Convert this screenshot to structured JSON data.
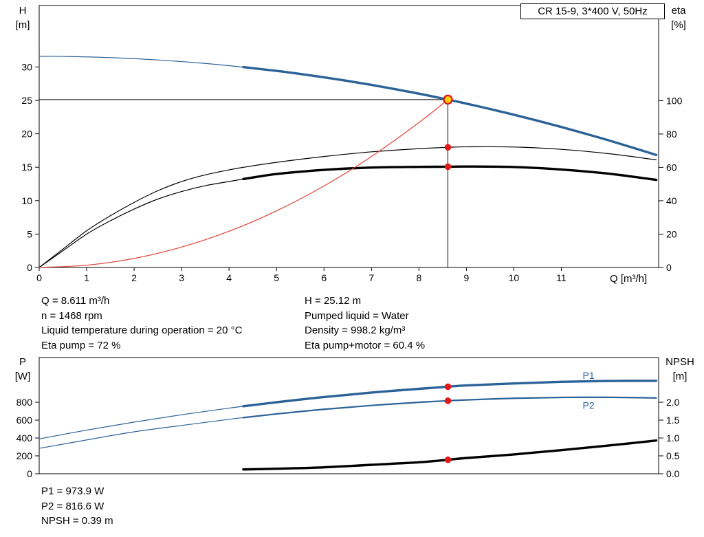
{
  "colors": {
    "blue": "#2b6298",
    "black": "#000000",
    "system_red": "#e04438",
    "dot_red": "#e01818",
    "duty_fill": "#ffd300",
    "duty_ring": "#e01818"
  },
  "info_top": {
    "col1": [
      "Q = 8.611 m³/h",
      "n = 1468 rpm",
      "Liquid temperature during operation = 20 °C",
      "Eta pump = 72 %"
    ],
    "col2": [
      "H = 25.12 m",
      "Pumped liquid = Water",
      "Density = 998.2 kg/m³",
      "Eta pump+motor = 60.4 %"
    ]
  },
  "info_bottom": [
    "P1 = 973.9 W",
    "P2 = 816.6 W",
    "NPSH = 0.39 m"
  ],
  "chart_data": [
    {
      "type": "line",
      "name": "hq-eta-chart",
      "title": "CR 15-9, 3*400 V, 50Hz",
      "x_axis": {
        "label": "Q [m³/h]",
        "min": 0,
        "max": 13.05,
        "tick_values": [
          0,
          1,
          2,
          3,
          4,
          5,
          6,
          7,
          8,
          9,
          10,
          11
        ],
        "tick_labels": [
          "0",
          "1",
          "2",
          "3",
          "4",
          "5",
          "6",
          "7",
          "8",
          "9",
          "10",
          "11"
        ]
      },
      "y_left": {
        "label": "H",
        "unit": "[m]",
        "min": 0,
        "max": 39.2,
        "tick_values": [
          0,
          5,
          10,
          15,
          20,
          25,
          30
        ],
        "tick_labels": [
          "0",
          "5",
          "10",
          "15",
          "20",
          "25",
          "30"
        ]
      },
      "y_right": {
        "label": "eta",
        "unit": "[%]",
        "min": 0,
        "max": 157,
        "tick_values": [
          0,
          20,
          40,
          60,
          80,
          100
        ],
        "tick_labels": [
          "0",
          "20",
          "40",
          "60",
          "80",
          "100"
        ]
      },
      "duty_point": {
        "q": 8.611,
        "value": 25.12,
        "axis": "left"
      },
      "series": [
        {
          "name": "head-curve",
          "axis": "left",
          "color": "blue",
          "thick_from": 4.3,
          "x": [
            0,
            0.5,
            1,
            1.5,
            2,
            2.5,
            3,
            3.5,
            4,
            4.3,
            5,
            5.5,
            6,
            6.5,
            7,
            7.5,
            8,
            8.611,
            9,
            9.5,
            10,
            10.5,
            11,
            11.5,
            12,
            12.5,
            13
          ],
          "y": [
            31.6,
            31.58,
            31.51,
            31.4,
            31.25,
            31.05,
            30.81,
            30.53,
            30.2,
            29.98,
            29.42,
            28.96,
            28.45,
            27.91,
            27.32,
            26.68,
            26.01,
            25.12,
            24.52,
            23.71,
            22.86,
            21.96,
            21.02,
            20.04,
            19.02,
            17.94,
            16.83
          ]
        },
        {
          "name": "eta-pump-curve",
          "axis": "right",
          "color": "black",
          "x": [
            0,
            0.5,
            1,
            1.5,
            2,
            2.5,
            3,
            3.5,
            4,
            4.3,
            5,
            6,
            7,
            8,
            8.611,
            9,
            10,
            11,
            12,
            13
          ],
          "y": [
            0,
            11,
            22,
            31,
            39,
            46,
            51.5,
            55.5,
            58.5,
            60,
            63,
            66.5,
            69.3,
            71.2,
            72,
            72.3,
            72.2,
            70.8,
            68.2,
            64.5
          ]
        },
        {
          "name": "eta-pump-motor-curve",
          "axis": "right",
          "color": "black",
          "thick_from": 4.3,
          "x": [
            0,
            0.5,
            1,
            1.5,
            2,
            2.5,
            3,
            3.5,
            4,
            4.3,
            5,
            6,
            7,
            8,
            8.611,
            9,
            10,
            11,
            12,
            13
          ],
          "y": [
            0,
            10,
            20,
            28,
            35,
            41,
            45.5,
            49,
            51.5,
            53,
            56,
            58.5,
            59.9,
            60.3,
            60.4,
            60.5,
            60.2,
            58.7,
            56.2,
            52.5
          ]
        },
        {
          "name": "system-curve",
          "axis": "left",
          "color": "system_red",
          "x": [
            0,
            1,
            2,
            3,
            4,
            5,
            6,
            7,
            8,
            8.611
          ],
          "y": [
            0,
            0.34,
            1.35,
            3.05,
            5.42,
            8.47,
            12.19,
            16.6,
            21.68,
            25.12
          ]
        }
      ],
      "markers": [
        {
          "type": "duty",
          "q": 8.611,
          "value": 25.12,
          "axis": "left",
          "name": "duty-point-marker"
        },
        {
          "type": "dot",
          "q": 8.611,
          "value": 72,
          "axis": "right",
          "name": "eta-pump-duty-dot"
        },
        {
          "type": "dot",
          "q": 8.611,
          "value": 60.4,
          "axis": "right",
          "name": "eta-pump-motor-duty-dot"
        }
      ],
      "series_labels": []
    },
    {
      "type": "line",
      "name": "power-npsh-chart",
      "title": "",
      "x_axis": {
        "label": "",
        "min": 0,
        "max": 13.05,
        "tick_values": [],
        "tick_labels": []
      },
      "y_left": {
        "label": "P",
        "unit": "[W]",
        "min": 0,
        "max": 1300,
        "tick_values": [
          0,
          200,
          400,
          600,
          800
        ],
        "tick_labels": [
          "0",
          "200",
          "400",
          "600",
          "800"
        ]
      },
      "y_right": {
        "label": "NPSH",
        "unit": "[m]",
        "min": 0,
        "max": 3.25,
        "tick_values": [
          0,
          0.5,
          1,
          1.5,
          2
        ],
        "tick_labels": [
          "0.0",
          "0.5",
          "1.0",
          "1.5",
          "2.0"
        ]
      },
      "duty_point": null,
      "series": [
        {
          "name": "p1-curve",
          "axis": "left",
          "color": "blue",
          "thick_from": 4.3,
          "x": [
            0,
            1,
            2,
            3,
            4,
            4.3,
            5,
            6,
            7,
            8,
            8.611,
            9,
            10,
            11,
            12,
            13
          ],
          "y": [
            390,
            488,
            578,
            660,
            734,
            755,
            800,
            858,
            908,
            950,
            973.9,
            988,
            1010,
            1028,
            1038,
            1040
          ]
        },
        {
          "name": "p2-curve",
          "axis": "left",
          "color": "blue",
          "thick_from": 4.3,
          "thick_width": 2.2,
          "x": [
            0,
            1,
            2,
            3,
            4,
            4.3,
            5,
            6,
            7,
            8,
            8.611,
            9,
            10,
            11,
            12,
            13
          ],
          "y": [
            284,
            378,
            469,
            540,
            609,
            628,
            669,
            721,
            764,
            799,
            816.6,
            826,
            844,
            854,
            855,
            848
          ]
        },
        {
          "name": "npsh-curve",
          "axis": "right",
          "color": "black",
          "thick": true,
          "x": [
            4.3,
            5,
            6,
            7,
            8,
            8.611,
            9,
            10,
            11,
            12,
            13
          ],
          "y": [
            0.12,
            0.14,
            0.18,
            0.25,
            0.32,
            0.39,
            0.44,
            0.54,
            0.66,
            0.79,
            0.93
          ]
        }
      ],
      "markers": [
        {
          "type": "dot",
          "q": 8.611,
          "value": 973.9,
          "axis": "left",
          "name": "p1-duty-dot"
        },
        {
          "type": "dot",
          "q": 8.611,
          "value": 816.6,
          "axis": "left",
          "name": "p2-duty-dot"
        },
        {
          "type": "dot",
          "q": 8.611,
          "value": 0.39,
          "axis": "right",
          "name": "npsh-duty-dot"
        }
      ],
      "series_labels": [
        {
          "text": "P1",
          "q": 11.45,
          "value": 1062,
          "axis": "left",
          "color": "blue"
        },
        {
          "text": "P2",
          "q": 11.45,
          "value": 728,
          "axis": "left",
          "color": "blue"
        }
      ]
    }
  ]
}
